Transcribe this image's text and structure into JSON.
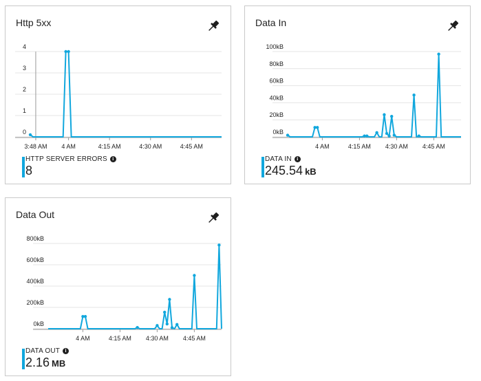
{
  "colors": {
    "accent": "#11a7dd",
    "grid": "#e4e4e4",
    "axis": "#9a9a9a",
    "text": "#1f1f1f"
  },
  "icons": {
    "pin": "pin-icon",
    "info": "info-icon"
  },
  "tiles": [
    {
      "id": "http",
      "title": "Http 5xx",
      "pin_label": "Pin to dashboard",
      "summary": {
        "label": "HTTP SERVER ERRORS",
        "value": "8",
        "unit": ""
      }
    },
    {
      "id": "datain",
      "title": "Data In",
      "pin_label": "Pin to dashboard",
      "summary": {
        "label": "DATA IN",
        "value": "245.54",
        "unit": "kB"
      }
    },
    {
      "id": "dataout",
      "title": "Data Out",
      "pin_label": "Pin to dashboard",
      "summary": {
        "label": "DATA OUT",
        "value": "2.16",
        "unit": "MB"
      }
    }
  ],
  "chart_data": [
    {
      "type": "line",
      "title": "Http 5xx",
      "xlabel": "",
      "ylabel": "",
      "x_unit": "minute",
      "xlim": [
        "3:46 AM",
        "4:56 AM"
      ],
      "ylim": [
        0,
        4
      ],
      "yticks": [
        0,
        1,
        2,
        3,
        4
      ],
      "ytick_labels": [
        "0",
        "1",
        "2",
        "3",
        "4"
      ],
      "xticks": [
        "3:48 AM",
        "4 AM",
        "4:15 AM",
        "4:30 AM",
        "4:45 AM"
      ],
      "grid": true,
      "series": [
        {
          "x": [
            "3:46 AM",
            "3:47 AM",
            "3:48 AM",
            "3:49 AM",
            "3:50 AM",
            "3:51 AM",
            "3:52 AM",
            "3:53 AM",
            "3:54 AM",
            "3:55 AM",
            "3:56 AM",
            "3:57 AM",
            "3:58 AM",
            "3:59 AM",
            "4:00 AM",
            "4:01 AM",
            "4:02 AM",
            "4:03 AM",
            "4:04 AM",
            "4:05 AM",
            "4:06 AM",
            "4:07 AM",
            "4:08 AM",
            "4:09 AM",
            "4:10 AM",
            "4:11 AM",
            "4:12 AM",
            "4:13 AM",
            "4:14 AM",
            "4:15 AM",
            "4:16 AM",
            "4:17 AM",
            "4:18 AM",
            "4:19 AM",
            "4:20 AM",
            "4:21 AM",
            "4:22 AM",
            "4:23 AM",
            "4:24 AM",
            "4:25 AM",
            "4:26 AM",
            "4:27 AM",
            "4:28 AM",
            "4:29 AM",
            "4:30 AM",
            "4:31 AM",
            "4:32 AM",
            "4:33 AM",
            "4:34 AM",
            "4:35 AM",
            "4:36 AM",
            "4:37 AM",
            "4:38 AM",
            "4:39 AM",
            "4:40 AM",
            "4:41 AM",
            "4:42 AM",
            "4:43 AM",
            "4:44 AM",
            "4:45 AM",
            "4:46 AM",
            "4:47 AM",
            "4:48 AM",
            "4:49 AM",
            "4:50 AM",
            "4:51 AM",
            "4:52 AM",
            "4:53 AM",
            "4:54 AM",
            "4:55 AM",
            "4:56 AM"
          ],
          "values": [
            0.1,
            0,
            0,
            0,
            0,
            0,
            0,
            0,
            0,
            0,
            0,
            0,
            0,
            4,
            4,
            0,
            0,
            0,
            0,
            0,
            0,
            0,
            0,
            0,
            0,
            0,
            0,
            0,
            0,
            0,
            0,
            0,
            0,
            0,
            0,
            0,
            0,
            0,
            0,
            0,
            0,
            0,
            0,
            0,
            0,
            0,
            0,
            0,
            0,
            0,
            0,
            0,
            0,
            0,
            0,
            0,
            0,
            0,
            0,
            0,
            0,
            0,
            0,
            0,
            0,
            0,
            0,
            0,
            0,
            0,
            0
          ]
        }
      ]
    },
    {
      "type": "line",
      "title": "Data In",
      "xlabel": "",
      "ylabel": "",
      "x_unit": "minute",
      "xlim": [
        "3:46 AM",
        "4:56 AM"
      ],
      "ylim": [
        0,
        100
      ],
      "yticks": [
        0,
        20,
        40,
        60,
        80,
        100
      ],
      "ytick_labels": [
        "0kB",
        "20kB",
        "40kB",
        "60kB",
        "80kB",
        "100kB"
      ],
      "xticks": [
        "4 AM",
        "4:15 AM",
        "4:30 AM",
        "4:45 AM"
      ],
      "grid": true,
      "series": [
        {
          "x": [
            "3:46 AM",
            "3:47 AM",
            "3:48 AM",
            "3:49 AM",
            "3:50 AM",
            "3:51 AM",
            "3:52 AM",
            "3:53 AM",
            "3:54 AM",
            "3:55 AM",
            "3:56 AM",
            "3:57 AM",
            "3:58 AM",
            "3:59 AM",
            "4:00 AM",
            "4:01 AM",
            "4:02 AM",
            "4:03 AM",
            "4:04 AM",
            "4:05 AM",
            "4:06 AM",
            "4:07 AM",
            "4:08 AM",
            "4:09 AM",
            "4:10 AM",
            "4:11 AM",
            "4:12 AM",
            "4:13 AM",
            "4:14 AM",
            "4:15 AM",
            "4:16 AM",
            "4:17 AM",
            "4:18 AM",
            "4:19 AM",
            "4:20 AM",
            "4:21 AM",
            "4:22 AM",
            "4:23 AM",
            "4:24 AM",
            "4:25 AM",
            "4:26 AM",
            "4:27 AM",
            "4:28 AM",
            "4:29 AM",
            "4:30 AM",
            "4:31 AM",
            "4:32 AM",
            "4:33 AM",
            "4:34 AM",
            "4:35 AM",
            "4:36 AM",
            "4:37 AM",
            "4:38 AM",
            "4:39 AM",
            "4:40 AM",
            "4:41 AM",
            "4:42 AM",
            "4:43 AM",
            "4:44 AM",
            "4:45 AM",
            "4:46 AM",
            "4:47 AM",
            "4:48 AM",
            "4:49 AM",
            "4:50 AM",
            "4:51 AM",
            "4:52 AM",
            "4:53 AM",
            "4:54 AM",
            "4:55 AM",
            "4:56 AM"
          ],
          "values": [
            2,
            0,
            0,
            0,
            0,
            0,
            0,
            0,
            0,
            0,
            0,
            11,
            11,
            0,
            0,
            0,
            0,
            0,
            0,
            0,
            0,
            0,
            0,
            0,
            0,
            0,
            0,
            0,
            0,
            0,
            0,
            1,
            1,
            0,
            0,
            0,
            5,
            0,
            0,
            26,
            4,
            1,
            24,
            2,
            0,
            0,
            0,
            0,
            0,
            0,
            0,
            49,
            0,
            1,
            0,
            0,
            0,
            0,
            0,
            0,
            0,
            97,
            0,
            0,
            0,
            0,
            0,
            0,
            0,
            0,
            0
          ]
        }
      ]
    },
    {
      "type": "line",
      "title": "Data Out",
      "xlabel": "",
      "ylabel": "",
      "x_unit": "minute",
      "xlim": [
        "3:46 AM",
        "4:56 AM"
      ],
      "ylim": [
        0,
        800
      ],
      "yticks": [
        0,
        200,
        400,
        600,
        800
      ],
      "ytick_labels": [
        "0kB",
        "200kB",
        "400kB",
        "600kB",
        "800kB"
      ],
      "xticks": [
        "4 AM",
        "4:15 AM",
        "4:30 AM",
        "4:45 AM"
      ],
      "grid": true,
      "series": [
        {
          "x": [
            "3:46 AM",
            "3:47 AM",
            "3:48 AM",
            "3:49 AM",
            "3:50 AM",
            "3:51 AM",
            "3:52 AM",
            "3:53 AM",
            "3:54 AM",
            "3:55 AM",
            "3:56 AM",
            "3:57 AM",
            "3:58 AM",
            "3:59 AM",
            "4:00 AM",
            "4:01 AM",
            "4:02 AM",
            "4:03 AM",
            "4:04 AM",
            "4:05 AM",
            "4:06 AM",
            "4:07 AM",
            "4:08 AM",
            "4:09 AM",
            "4:10 AM",
            "4:11 AM",
            "4:12 AM",
            "4:13 AM",
            "4:14 AM",
            "4:15 AM",
            "4:16 AM",
            "4:17 AM",
            "4:18 AM",
            "4:19 AM",
            "4:20 AM",
            "4:21 AM",
            "4:22 AM",
            "4:23 AM",
            "4:24 AM",
            "4:25 AM",
            "4:26 AM",
            "4:27 AM",
            "4:28 AM",
            "4:29 AM",
            "4:30 AM",
            "4:31 AM",
            "4:32 AM",
            "4:33 AM",
            "4:34 AM",
            "4:35 AM",
            "4:36 AM",
            "4:37 AM",
            "4:38 AM",
            "4:39 AM",
            "4:40 AM",
            "4:41 AM",
            "4:42 AM",
            "4:43 AM",
            "4:44 AM",
            "4:45 AM",
            "4:46 AM",
            "4:47 AM",
            "4:48 AM",
            "4:49 AM",
            "4:50 AM",
            "4:51 AM",
            "4:52 AM",
            "4:53 AM",
            "4:54 AM",
            "4:55 AM",
            "4:56 AM"
          ],
          "values": [
            0,
            0,
            0,
            0,
            0,
            0,
            0,
            0,
            0,
            0,
            0,
            0,
            0,
            0,
            115,
            115,
            0,
            0,
            0,
            0,
            0,
            0,
            0,
            0,
            0,
            0,
            0,
            0,
            0,
            0,
            0,
            0,
            0,
            0,
            0,
            0,
            12,
            0,
            0,
            0,
            0,
            0,
            0,
            0,
            30,
            0,
            0,
            155,
            45,
            275,
            10,
            0,
            40,
            0,
            0,
            0,
            0,
            0,
            0,
            500,
            0,
            0,
            0,
            0,
            0,
            0,
            0,
            0,
            0,
            785,
            0
          ]
        }
      ]
    }
  ]
}
